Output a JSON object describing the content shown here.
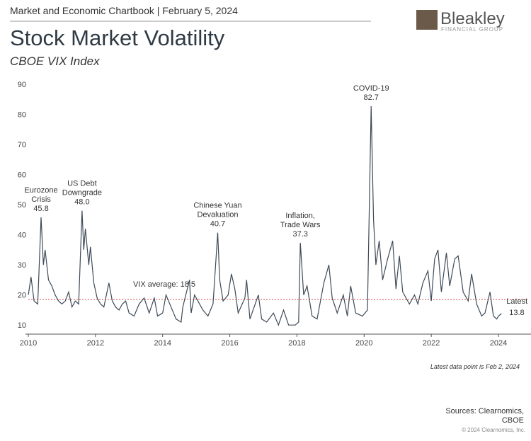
{
  "header": {
    "chartbook": "Market and Economic Chartbook | February 5, 2024",
    "logo_name": "Bleakley",
    "logo_sub": "FINANCIAL GROUP"
  },
  "footer": {
    "note": "Latest data point is Feb 2, 2024",
    "sources": [
      "Sources: Clearnomics,",
      "CBOE"
    ],
    "copyright": "© 2024 Clearnomics, Inc."
  },
  "chart_data": {
    "type": "line",
    "title": "Stock Market Volatility",
    "subtitle": "CBOE VIX Index",
    "xlim": [
      2010,
      2024.97
    ],
    "xticks": [
      2010,
      2012,
      2014,
      2016,
      2018,
      2020,
      2022,
      2024
    ],
    "ylim": [
      7,
      90
    ],
    "yticks": [
      10,
      20,
      30,
      40,
      50,
      60,
      70,
      80,
      90
    ],
    "series": [
      {
        "name": "CBOE VIX Index",
        "color": "#3d4a57",
        "x": [
          2010.0,
          2010.08,
          2010.17,
          2010.28,
          2010.38,
          2010.45,
          2010.5,
          2010.6,
          2010.7,
          2010.8,
          2010.9,
          2011.0,
          2011.1,
          2011.2,
          2011.3,
          2011.4,
          2011.5,
          2011.6,
          2011.65,
          2011.7,
          2011.8,
          2011.85,
          2011.95,
          2012.05,
          2012.15,
          2012.25,
          2012.4,
          2012.5,
          2012.6,
          2012.7,
          2012.8,
          2012.9,
          2013.0,
          2013.15,
          2013.3,
          2013.45,
          2013.6,
          2013.75,
          2013.85,
          2014.0,
          2014.1,
          2014.25,
          2014.4,
          2014.55,
          2014.6,
          2014.8,
          2014.85,
          2014.95,
          2015.05,
          2015.2,
          2015.35,
          2015.5,
          2015.64,
          2015.7,
          2015.8,
          2015.95,
          2016.05,
          2016.15,
          2016.25,
          2016.45,
          2016.5,
          2016.6,
          2016.85,
          2016.95,
          2017.1,
          2017.3,
          2017.45,
          2017.6,
          2017.75,
          2017.95,
          2018.05,
          2018.1,
          2018.2,
          2018.3,
          2018.45,
          2018.6,
          2018.8,
          2018.95,
          2019.05,
          2019.2,
          2019.38,
          2019.5,
          2019.6,
          2019.75,
          2019.95,
          2020.1,
          2020.21,
          2020.28,
          2020.35,
          2020.45,
          2020.55,
          2020.7,
          2020.85,
          2020.95,
          2021.05,
          2021.15,
          2021.35,
          2021.5,
          2021.6,
          2021.75,
          2021.9,
          2022.0,
          2022.1,
          2022.2,
          2022.3,
          2022.45,
          2022.55,
          2022.7,
          2022.8,
          2022.95,
          2023.1,
          2023.2,
          2023.35,
          2023.5,
          2023.6,
          2023.75,
          2023.85,
          2023.95,
          2024.0,
          2024.09
        ],
        "values": [
          20,
          26,
          18,
          17,
          45.8,
          30,
          35,
          25,
          23,
          20,
          18,
          17,
          18,
          21,
          16,
          18,
          17,
          48.0,
          35,
          42,
          30,
          36,
          24,
          19,
          17,
          16,
          24,
          18,
          16,
          15,
          17,
          18,
          14,
          13,
          17,
          19,
          14,
          19,
          13,
          14,
          20,
          16,
          12,
          11,
          16,
          25,
          14,
          20,
          18,
          15,
          13,
          17,
          40.7,
          25,
          18,
          20,
          27,
          22,
          14,
          19,
          25,
          12,
          20,
          12,
          11,
          14,
          10,
          15,
          10,
          10,
          11,
          37.3,
          20,
          23,
          13,
          12,
          24,
          30,
          19,
          14,
          20,
          13,
          23,
          14,
          13,
          15,
          82.7,
          45,
          30,
          38,
          25,
          32,
          38,
          22,
          33,
          21,
          17,
          20,
          17,
          24,
          28,
          18,
          32,
          35,
          21,
          34,
          23,
          32,
          33,
          21,
          18,
          27,
          17,
          13,
          14,
          21,
          13,
          12,
          13,
          13.8
        ]
      }
    ],
    "average": {
      "label": "VIX average:",
      "value": 18.5,
      "color": "#d9534f"
    },
    "latest": {
      "label": "Latest",
      "x": 2024.09,
      "value": 13.8
    },
    "annotations": [
      {
        "label": [
          "Eurozone",
          "Crisis"
        ],
        "x": 2010.38,
        "value": 45.8,
        "value_label": "45.8"
      },
      {
        "label": [
          "US Debt",
          "Downgrade"
        ],
        "x": 2011.6,
        "value": 48.0,
        "value_label": "48.0"
      },
      {
        "label": [
          "Chinese Yuan",
          "Devaluation"
        ],
        "x": 2015.64,
        "value": 40.7,
        "value_label": "40.7"
      },
      {
        "label": [
          "Inflation,",
          "Trade Wars"
        ],
        "x": 2018.1,
        "value": 37.3,
        "value_label": "37.3"
      },
      {
        "label": [
          "COVID-19"
        ],
        "x": 2020.21,
        "value": 82.7,
        "value_label": "82.7"
      }
    ]
  }
}
